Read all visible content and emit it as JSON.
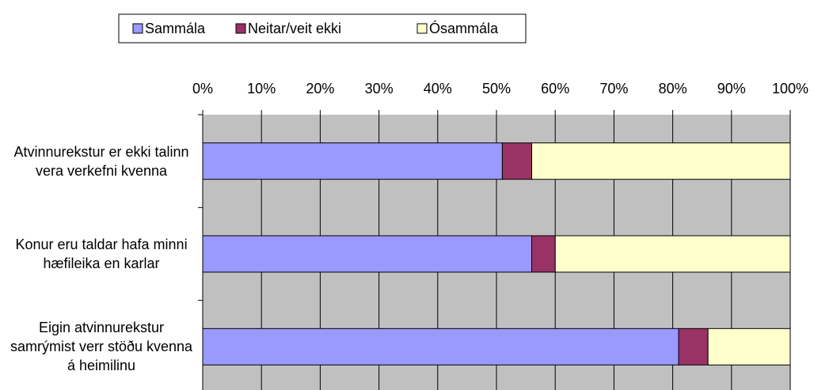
{
  "chart_data": {
    "type": "bar",
    "orientation": "horizontal",
    "stacked": true,
    "categories": [
      "Atvinnurekstur er ekki talinn vera verkefni kvenna",
      "Konur eru taldar hafa minni hæfileika en karlar",
      "Eigin atvinnurekstur samrýmist verr stöðu kvenna á heimilinu"
    ],
    "series": [
      {
        "name": "Sammála",
        "color": "#9999ff",
        "values": [
          51,
          56,
          81
        ]
      },
      {
        "name": "Neitar/veit ekki",
        "color": "#993366",
        "values": [
          5,
          4,
          5
        ]
      },
      {
        "name": "Ósammála",
        "color": "#ffffcc",
        "values": [
          44,
          40,
          14
        ]
      }
    ],
    "xlim": [
      0,
      100
    ],
    "xticks": [
      {
        "value": 0,
        "label": "0%"
      },
      {
        "value": 10,
        "label": "10%"
      },
      {
        "value": 20,
        "label": "20%"
      },
      {
        "value": 30,
        "label": "30%"
      },
      {
        "value": 40,
        "label": "40%"
      },
      {
        "value": 50,
        "label": "50%"
      },
      {
        "value": 60,
        "label": "60%"
      },
      {
        "value": 70,
        "label": "70%"
      },
      {
        "value": 80,
        "label": "80%"
      },
      {
        "value": 90,
        "label": "90%"
      },
      {
        "value": 100,
        "label": "100%"
      }
    ],
    "grid": true,
    "legend": "top",
    "plot_background": "#c0c0c0"
  }
}
